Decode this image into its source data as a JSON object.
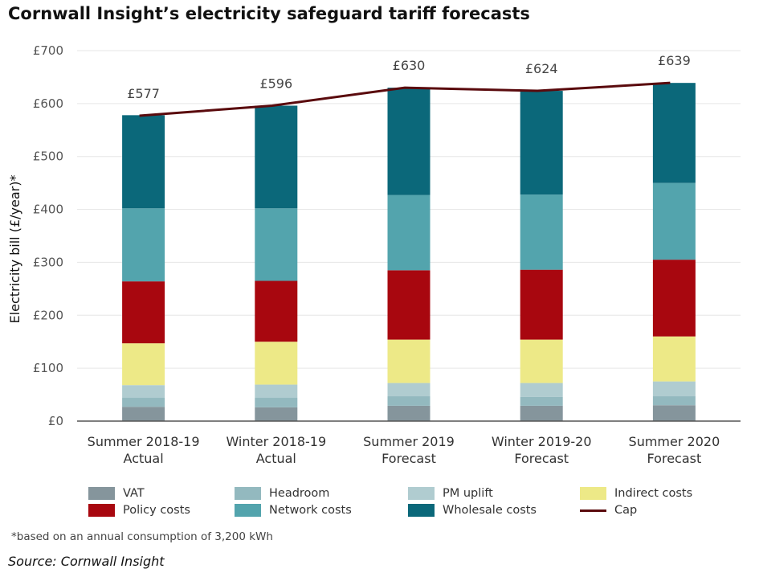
{
  "title": "Cornwall Insight’s electricity safeguard tariff forecasts",
  "footnote": "*based on an annual consumption of 3,200 kWh",
  "source": "Source: Cornwall Insight",
  "chart_data": {
    "type": "bar",
    "stacked": true,
    "title": "Cornwall Insight’s electricity safeguard tariff forecasts",
    "ylabel": "Electricity bill (£/year)*",
    "xlabel": "",
    "ylim": [
      0,
      700
    ],
    "yticks": [
      "£0",
      "£100",
      "£200",
      "£300",
      "£400",
      "£500",
      "£600",
      "£700"
    ],
    "grid": true,
    "legend": "bottom",
    "categories": [
      [
        "Summer 2018-19",
        "Actual"
      ],
      [
        "Winter 2018-19",
        "Actual"
      ],
      [
        "Summer 2019",
        "Forecast"
      ],
      [
        "Winter 2019-20",
        "Forecast"
      ],
      [
        "Summer 2020",
        "Forecast"
      ]
    ],
    "series": [
      {
        "name": "VAT",
        "color": "#85959c",
        "values": [
          27,
          26,
          29,
          29,
          30
        ]
      },
      {
        "name": "Headroom",
        "color": "#93b9bf",
        "values": [
          17,
          18,
          18,
          17,
          17
        ]
      },
      {
        "name": "PM uplift",
        "color": "#b0ccd0",
        "values": [
          24,
          25,
          25,
          26,
          28
        ]
      },
      {
        "name": "Indirect costs",
        "color": "#ede987",
        "values": [
          79,
          81,
          82,
          82,
          85
        ]
      },
      {
        "name": "Policy costs",
        "color": "#a8070f",
        "values": [
          117,
          115,
          131,
          132,
          145
        ]
      },
      {
        "name": "Network costs",
        "color": "#53a4ad",
        "values": [
          138,
          137,
          142,
          142,
          145
        ]
      },
      {
        "name": "Wholesale costs",
        "color": "#0b687a",
        "values": [
          176,
          194,
          203,
          196,
          189
        ]
      }
    ],
    "cap": {
      "name": "Cap",
      "color": "#5a0a0d",
      "values": [
        577,
        596,
        630,
        624,
        639
      ],
      "labels": [
        "£577",
        "£596",
        "£630",
        "£624",
        "£639"
      ]
    }
  }
}
